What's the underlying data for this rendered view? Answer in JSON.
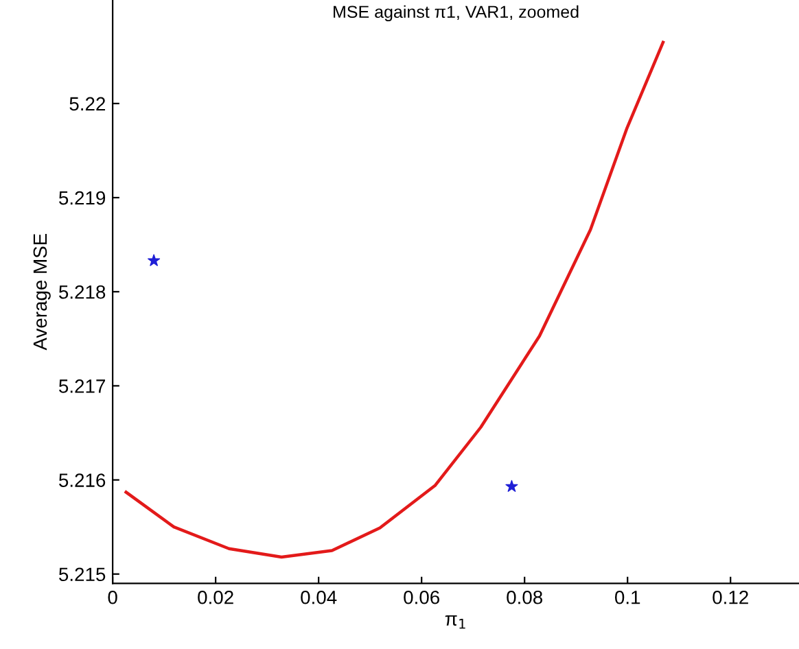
{
  "chart_data": {
    "type": "line",
    "title": "MSE against π1, VAR1, zoomed",
    "xlabel": "π$_{1}$",
    "ylabel": "Average MSE",
    "xlim": [
      0,
      0.1333
    ],
    "ylim": [
      5.2149,
      5.2211
    ],
    "xticks": [
      0,
      0.02,
      0.04,
      0.06,
      0.08,
      0.1,
      0.12
    ],
    "yticks": [
      5.215,
      5.216,
      5.217,
      5.218,
      5.219,
      5.22
    ],
    "grid": false,
    "legend": false,
    "series": [
      {
        "color": "#e31a1a",
        "x": [
          0.0026,
          0.0119,
          0.0226,
          0.0328,
          0.0426,
          0.0519,
          0.0626,
          0.0715,
          0.0829,
          0.0928,
          0.0999,
          0.1069
        ],
        "values": [
          5.21587,
          5.2155,
          5.21527,
          5.21518,
          5.21525,
          5.21549,
          5.21594,
          5.21656,
          5.21753,
          5.21866,
          5.21974,
          5.22065
        ],
        "line_style": "solid",
        "marker": "none"
      },
      {
        "type": "scatter",
        "color": "#1f1fd6",
        "x": [
          0.008,
          0.0775
        ],
        "values": [
          5.21833,
          5.21593
        ],
        "marker": "star"
      }
    ]
  }
}
